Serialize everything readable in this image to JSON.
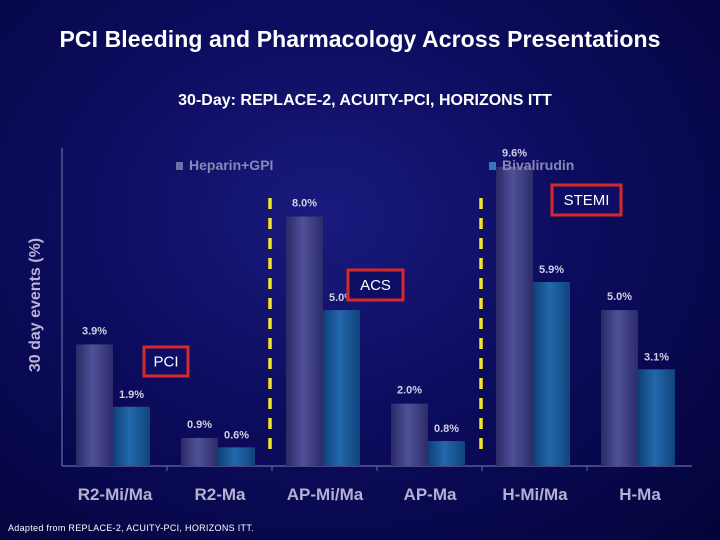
{
  "title": "PCI Bleeding and Pharmacology Across Presentations",
  "subtitle": "30-Day: REPLACE-2, ACUITY-PCI, HORIZONS ITT",
  "footnote": "Adapted from REPLACE-2, ACUITY-PCI, HORIZONS ITT.",
  "colors": {
    "heparin": "#3c3c84",
    "bivalirudin": "#1a5a9a",
    "label_text": "#d2cfe4",
    "callout_border": "#d42a2a",
    "divider": "#f2e52c"
  },
  "chart_data": {
    "type": "bar",
    "ylabel": "30 day events (%)",
    "ylim": [
      0,
      10.2
    ],
    "grid": false,
    "legend_position": "top",
    "categories": [
      "R2-Mi/Ma",
      "R2-Ma",
      "AP-Mi/Ma",
      "AP-Ma",
      "H-Mi/Ma",
      "H-Ma"
    ],
    "series": [
      {
        "name": "Heparin+GPI",
        "values": [
          3.9,
          0.9,
          8.0,
          2.0,
          9.6,
          5.0
        ],
        "labels": [
          "3.9%",
          "0.9%",
          "8.0%",
          "2.0%",
          "9.6%",
          "5.0%"
        ]
      },
      {
        "name": "Bivalirudin",
        "values": [
          1.9,
          0.6,
          5.0,
          0.8,
          5.9,
          3.1
        ],
        "labels": [
          "1.9%",
          "0.6%",
          "5.0%",
          "0.8%",
          "5.9%",
          "3.1%"
        ]
      }
    ],
    "annotations": [
      {
        "text": "PCI",
        "group": 0
      },
      {
        "text": "ACS",
        "group": 1
      },
      {
        "text": "STEMI",
        "group": 2
      }
    ]
  }
}
